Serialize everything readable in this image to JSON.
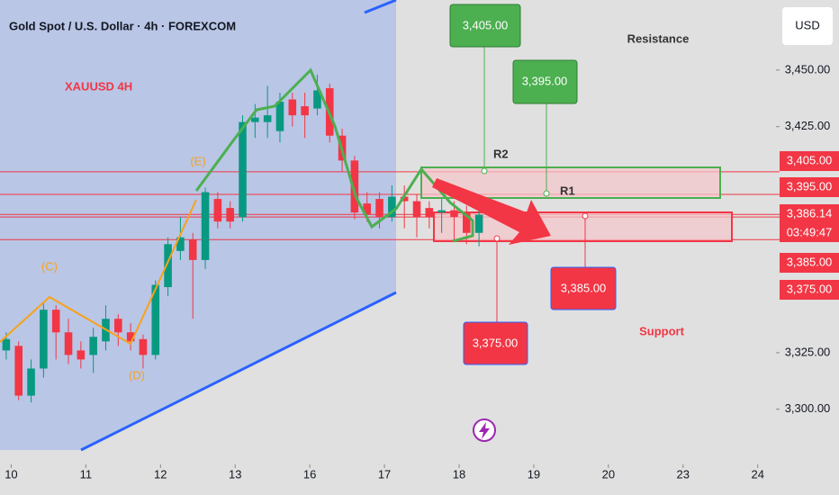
{
  "chart_data": {
    "type": "candlestick",
    "title": "Gold Spot / U.S. Dollar · 4h · FOREXCOM",
    "currency": "USD",
    "up_color": "#089981",
    "down_color": "#f23645",
    "x": [
      0,
      1,
      2,
      3,
      4,
      5,
      6,
      7,
      8,
      9,
      10,
      11,
      12,
      13,
      14,
      15,
      16,
      17,
      18,
      19,
      20,
      21,
      22,
      23,
      24,
      25,
      26,
      27,
      28,
      29,
      30,
      31,
      32,
      33,
      34,
      35,
      36,
      37,
      38
    ],
    "open": [
      3326,
      3328,
      3306,
      3318,
      3344,
      3334,
      3326,
      3324,
      3330,
      3340,
      3334,
      3331,
      3324,
      3354,
      3370,
      3375,
      3366,
      3393,
      3389,
      3385,
      3427,
      3427,
      3423,
      3437,
      3434,
      3433,
      3442,
      3421,
      3410,
      3391,
      3393,
      3385,
      3394,
      3392,
      3389,
      3387,
      3388,
      3387,
      3378
    ],
    "high": [
      3334,
      3330,
      3322,
      3347,
      3346,
      3340,
      3330,
      3336,
      3346,
      3342,
      3338,
      3333,
      3357,
      3376,
      3385,
      3378,
      3398,
      3396,
      3392,
      3430,
      3435,
      3443,
      3440,
      3440,
      3440,
      3448,
      3444,
      3424,
      3412,
      3396,
      3396,
      3399,
      3399,
      3395,
      3392,
      3393,
      3392,
      3390,
      3392
    ],
    "low": [
      3322,
      3304,
      3303,
      3314,
      3322,
      3320,
      3318,
      3316,
      3326,
      3328,
      3326,
      3318,
      3322,
      3350,
      3366,
      3340,
      3362,
      3380,
      3380,
      3383,
      3420,
      3420,
      3418,
      3425,
      3420,
      3430,
      3418,
      3405,
      3384,
      3383,
      3380,
      3383,
      3380,
      3376,
      3380,
      3378,
      3374,
      3373,
      3372
    ],
    "close": [
      3331,
      3306,
      3318,
      3344,
      3334,
      3324,
      3322,
      3332,
      3340,
      3334,
      3330,
      3324,
      3355,
      3373,
      3376,
      3366,
      3396,
      3383,
      3383,
      3427,
      3429,
      3430,
      3436,
      3430,
      3430,
      3441,
      3421,
      3410,
      3387,
      3386,
      3385,
      3394,
      3392,
      3385,
      3385,
      3388,
      3385,
      3378,
      3386
    ],
    "xlim": [
      -0.5,
      61
    ],
    "xticks": [
      {
        "value": 0.4,
        "label": "10"
      },
      {
        "value": 6.4,
        "label": "11"
      },
      {
        "value": 12.4,
        "label": "12"
      },
      {
        "value": 18.4,
        "label": "13"
      },
      {
        "value": 24.4,
        "label": "16"
      },
      {
        "value": 30.4,
        "label": "17"
      },
      {
        "value": 36.4,
        "label": "18"
      },
      {
        "value": 42.4,
        "label": "19"
      },
      {
        "value": 48.4,
        "label": "20"
      },
      {
        "value": 54.4,
        "label": "23"
      },
      {
        "value": 60.4,
        "label": "24"
      }
    ],
    "ylim": [
      3274,
      3481
    ],
    "yticks": [
      {
        "value": 3450,
        "label": "3,450.00"
      },
      {
        "value": 3425,
        "label": "3,425.00"
      },
      {
        "value": 3325,
        "label": "3,325.00"
      },
      {
        "value": 3300,
        "label": "3,300.00"
      }
    ],
    "grid": false,
    "levels": [
      {
        "value": 3405,
        "label": "3,405.00"
      },
      {
        "value": 3395,
        "label": "3,395.00"
      },
      {
        "value": 3386.14,
        "label": "3,386.14"
      },
      {
        "value": 3385,
        "label": "3,385.00"
      },
      {
        "value": 3375,
        "label": "3,375.00"
      }
    ],
    "countdown": "03:49:47",
    "annotations": [
      "XAUUSD 4H",
      "(C)",
      "(D)",
      "(E)",
      "R2",
      "R1",
      "Resistance",
      "Support"
    ]
  }
}
